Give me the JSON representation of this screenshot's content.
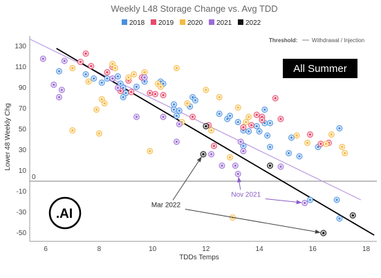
{
  "chart_data": {
    "type": "scatter",
    "title": "Weekly L48 Storage Change vs. Avg TDD",
    "xlabel": "TDDs Temps",
    "ylabel": "Lower 48 Weekly Chg",
    "xlim": [
      5.4,
      18.4
    ],
    "ylim": [
      -58,
      140
    ],
    "xticks": [
      6,
      8,
      10,
      12,
      14,
      16,
      18
    ],
    "yticks": [
      -50,
      -30,
      -10,
      10,
      30,
      50,
      70,
      90,
      110,
      130
    ],
    "zero_label": "0",
    "grid": false,
    "legend_position": "top-center",
    "colors": {
      "2018": "#4a90e2",
      "2019": "#e8496a",
      "2020": "#f5b942",
      "2021": "#9b6cd6",
      "2022": "#111111"
    },
    "threshold": {
      "label": "Threshold:",
      "legend": "Withdrawal / Injection",
      "y": 0,
      "color": "#999999"
    },
    "badge": "All Summer",
    "logo": ".AI",
    "trend_lines": [
      {
        "x1": 5.4,
        "y1": 137,
        "x2": 17.8,
        "y2": -18,
        "color": "#b89ae0"
      },
      {
        "x1": 6.4,
        "y1": 128,
        "x2": 18.3,
        "y2": -52,
        "color": "#000000"
      }
    ],
    "annotations": [
      {
        "text": "Mar 2022",
        "x": 10.5,
        "y": -25,
        "style": "dark",
        "arrows": [
          [
            11.9,
            26
          ],
          [
            16.4,
            -50
          ]
        ]
      },
      {
        "text": "Nov 2021",
        "x": 13.5,
        "y": -15,
        "style": "purple",
        "arrows": [
          [
            13.2,
            7
          ],
          [
            15.7,
            -21
          ]
        ]
      }
    ],
    "series": [
      {
        "name": "2018",
        "points": [
          [
            6.5,
            106
          ],
          [
            7.5,
            103
          ],
          [
            7.8,
            99
          ],
          [
            8.1,
            95
          ],
          [
            8.3,
            99
          ],
          [
            8.7,
            101
          ],
          [
            8.8,
            94
          ],
          [
            8.9,
            90
          ],
          [
            9.0,
            85
          ],
          [
            8.9,
            81
          ],
          [
            9.4,
            91
          ],
          [
            9.7,
            96
          ],
          [
            10.3,
            96
          ],
          [
            10.4,
            94
          ],
          [
            10.8,
            74
          ],
          [
            10.8,
            69
          ],
          [
            10.9,
            63
          ],
          [
            11.0,
            68
          ],
          [
            11.4,
            72
          ],
          [
            11.5,
            81
          ],
          [
            11.6,
            78
          ],
          [
            12.5,
            65
          ],
          [
            12.8,
            60
          ],
          [
            12.9,
            63
          ],
          [
            13.2,
            57
          ],
          [
            13.4,
            49
          ],
          [
            13.4,
            34
          ],
          [
            13.6,
            48
          ],
          [
            13.9,
            53
          ],
          [
            14.0,
            48
          ],
          [
            14.2,
            56
          ],
          [
            14.2,
            69
          ],
          [
            14.4,
            56
          ],
          [
            14.3,
            44
          ],
          [
            14.4,
            33
          ],
          [
            15.1,
            27
          ],
          [
            15.2,
            42
          ],
          [
            15.5,
            24
          ],
          [
            15.9,
            -18
          ],
          [
            16.2,
            33
          ],
          [
            16.9,
            -18
          ],
          [
            17.0,
            51
          ],
          [
            17.0,
            -36
          ]
        ]
      },
      {
        "name": "2019",
        "points": [
          [
            7.3,
            115
          ],
          [
            7.5,
            123
          ],
          [
            7.7,
            111
          ],
          [
            8.3,
            105
          ],
          [
            8.5,
            110
          ],
          [
            8.8,
            87
          ],
          [
            9.1,
            97
          ],
          [
            9.2,
            86
          ],
          [
            9.6,
            100
          ],
          [
            9.9,
            85
          ],
          [
            10.1,
            84
          ],
          [
            10.4,
            83
          ],
          [
            11.5,
            62
          ],
          [
            12.1,
            54
          ],
          [
            12.3,
            34
          ],
          [
            13.4,
            52
          ],
          [
            13.7,
            54
          ],
          [
            13.9,
            64
          ],
          [
            14.1,
            62
          ],
          [
            14.1,
            59
          ],
          [
            14.6,
            80
          ],
          [
            14.8,
            60
          ],
          [
            15.9,
            45
          ],
          [
            16.3,
            36
          ],
          [
            16.6,
            37
          ]
        ]
      },
      {
        "name": "2020",
        "points": [
          [
            7.0,
            49
          ],
          [
            7.0,
            109
          ],
          [
            7.6,
            96
          ],
          [
            7.9,
            69
          ],
          [
            8.0,
            46
          ],
          [
            8.1,
            79
          ],
          [
            8.2,
            75
          ],
          [
            8.5,
            113
          ],
          [
            8.6,
            109
          ],
          [
            9.1,
            100
          ],
          [
            9.3,
            103
          ],
          [
            9.7,
            105
          ],
          [
            9.9,
            29
          ],
          [
            10.2,
            94
          ],
          [
            10.3,
            91
          ],
          [
            10.9,
            109
          ],
          [
            11.1,
            57
          ],
          [
            11.3,
            75
          ],
          [
            12.0,
            88
          ],
          [
            12.2,
            49
          ],
          [
            12.5,
            81
          ],
          [
            12.9,
            23
          ],
          [
            13.0,
            -35
          ],
          [
            13.2,
            71
          ],
          [
            13.5,
            57
          ],
          [
            13.6,
            62
          ],
          [
            15.4,
            44
          ],
          [
            15.8,
            37
          ],
          [
            16.5,
            36
          ],
          [
            16.7,
            45
          ],
          [
            17.1,
            33
          ],
          [
            17.2,
            27
          ]
        ]
      },
      {
        "name": "2021",
        "points": [
          [
            5.9,
            118
          ],
          [
            6.3,
            93
          ],
          [
            6.5,
            81
          ],
          [
            6.6,
            88
          ],
          [
            6.7,
            116
          ],
          [
            8.5,
            99
          ],
          [
            8.7,
            90
          ],
          [
            9.4,
            62
          ],
          [
            9.7,
            100
          ],
          [
            10.4,
            62
          ],
          [
            10.9,
            38
          ],
          [
            11.0,
            55
          ],
          [
            12.2,
            26
          ],
          [
            12.6,
            15
          ],
          [
            13.1,
            15
          ],
          [
            13.2,
            7
          ],
          [
            13.3,
            38
          ],
          [
            13.4,
            29
          ],
          [
            14.8,
            14
          ],
          [
            15.7,
            -21
          ]
        ]
      },
      {
        "name": "2022",
        "points": [
          [
            11.9,
            26
          ],
          [
            12.0,
            53
          ],
          [
            14.4,
            15
          ],
          [
            16.4,
            -50
          ],
          [
            17.5,
            -33
          ]
        ]
      }
    ]
  }
}
